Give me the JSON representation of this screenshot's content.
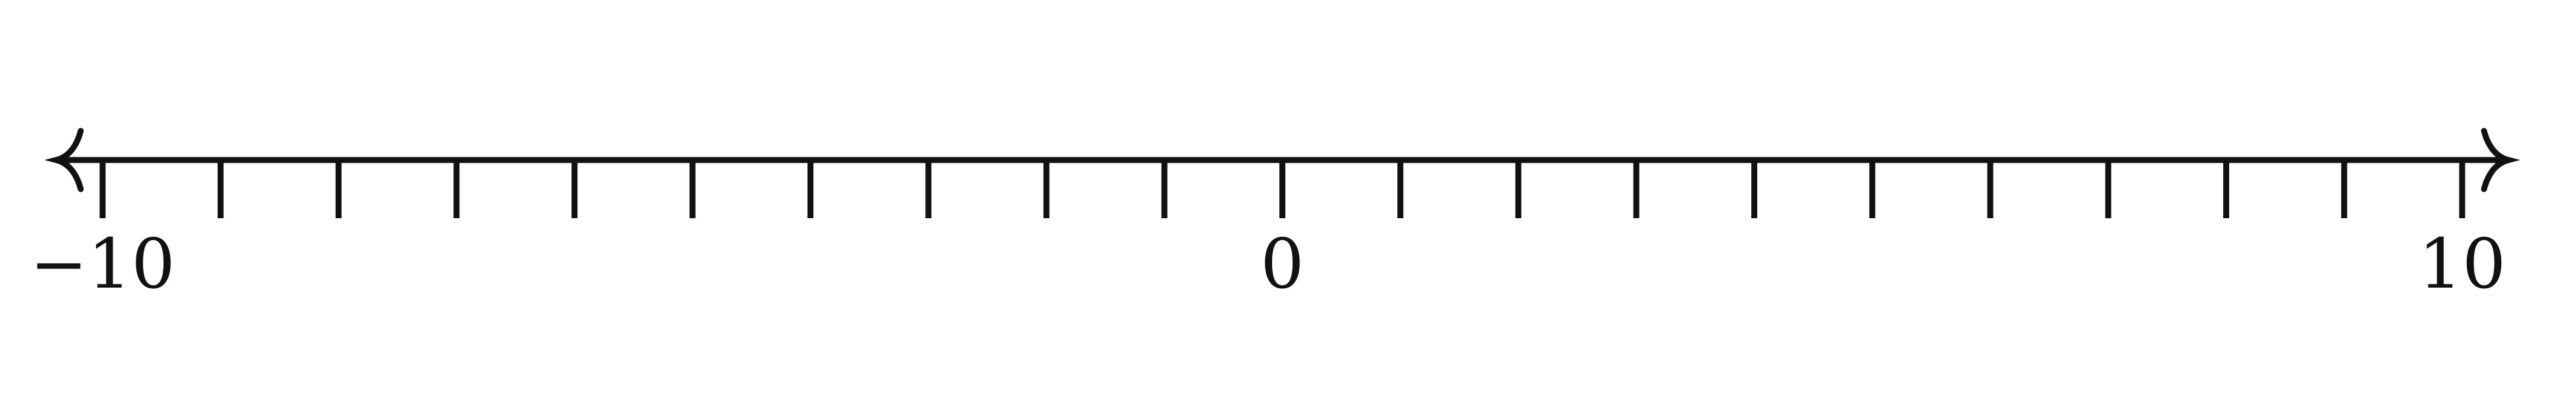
{
  "chart_data": {
    "type": "number-line",
    "min": -10,
    "max": 10,
    "tick_step": 1,
    "arrows": "both",
    "tick_labels": [
      {
        "value": -10,
        "text": "−10"
      },
      {
        "value": 0,
        "text": "0"
      },
      {
        "value": 10,
        "text": "10"
      }
    ]
  },
  "colors": {
    "line": "#111111",
    "background": "#ffffff"
  }
}
